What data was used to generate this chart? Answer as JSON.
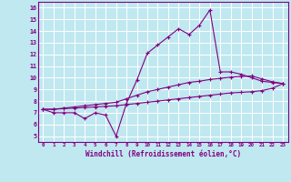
{
  "x": [
    0,
    1,
    2,
    3,
    4,
    5,
    6,
    7,
    8,
    9,
    10,
    11,
    12,
    13,
    14,
    15,
    16,
    17,
    18,
    19,
    20,
    21,
    22,
    23
  ],
  "line_main": [
    7.3,
    7.0,
    7.0,
    7.0,
    6.5,
    7.0,
    6.8,
    5.0,
    7.8,
    9.8,
    12.1,
    12.8,
    13.5,
    14.2,
    13.7,
    14.5,
    15.8,
    10.5,
    10.5,
    10.3,
    10.0,
    9.7,
    9.6,
    9.5
  ],
  "line_upper": [
    7.3,
    7.3,
    7.4,
    7.5,
    7.6,
    7.7,
    7.8,
    7.9,
    8.2,
    8.5,
    8.8,
    9.0,
    9.2,
    9.4,
    9.6,
    9.7,
    9.85,
    9.95,
    10.05,
    10.1,
    10.15,
    9.9,
    9.65,
    9.5
  ],
  "line_lower": [
    7.3,
    7.3,
    7.35,
    7.4,
    7.45,
    7.5,
    7.55,
    7.6,
    7.7,
    7.8,
    7.9,
    8.0,
    8.1,
    8.2,
    8.3,
    8.4,
    8.5,
    8.6,
    8.7,
    8.75,
    8.8,
    8.9,
    9.1,
    9.5
  ],
  "color": "#800080",
  "bg_color": "#c0e8f0",
  "grid_color": "#ffffff",
  "xlabel": "Windchill (Refroidissement éolien,°C)",
  "xlim": [
    -0.5,
    23.5
  ],
  "ylim": [
    4.5,
    16.5
  ],
  "yticks": [
    5,
    6,
    7,
    8,
    9,
    10,
    11,
    12,
    13,
    14,
    15,
    16
  ],
  "xticks": [
    0,
    1,
    2,
    3,
    4,
    5,
    6,
    7,
    8,
    9,
    10,
    11,
    12,
    13,
    14,
    15,
    16,
    17,
    18,
    19,
    20,
    21,
    22,
    23
  ]
}
